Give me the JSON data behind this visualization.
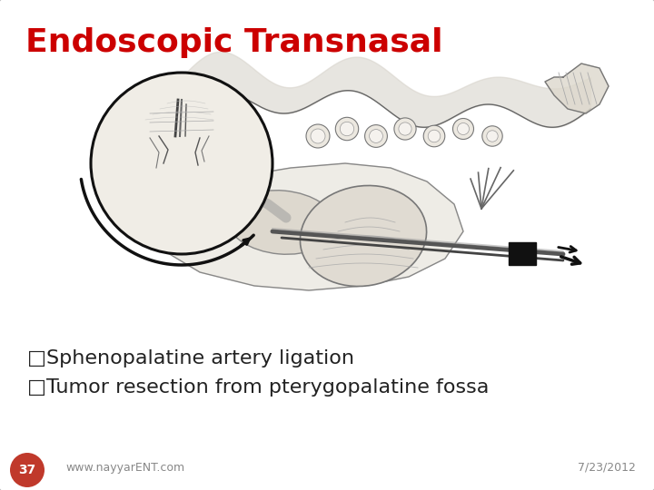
{
  "title": "Endoscopic Transnasal",
  "title_color": "#cc0000",
  "title_fontsize": 26,
  "bullet1": "□Sphenopalatine artery ligation",
  "bullet2": "□Tumor resection from pterygopalatine fossa",
  "bullet_fontsize": 16,
  "bullet_color": "#222222",
  "footer_left": "www.nayyarENT.com",
  "footer_right": "7/23/2012",
  "footer_fontsize": 9,
  "footer_color": "#888888",
  "slide_number": "37",
  "slide_number_bg": "#c0392b",
  "slide_number_color": "#ffffff",
  "background_color": "#ffffff",
  "border_color": "#bbbbbb"
}
